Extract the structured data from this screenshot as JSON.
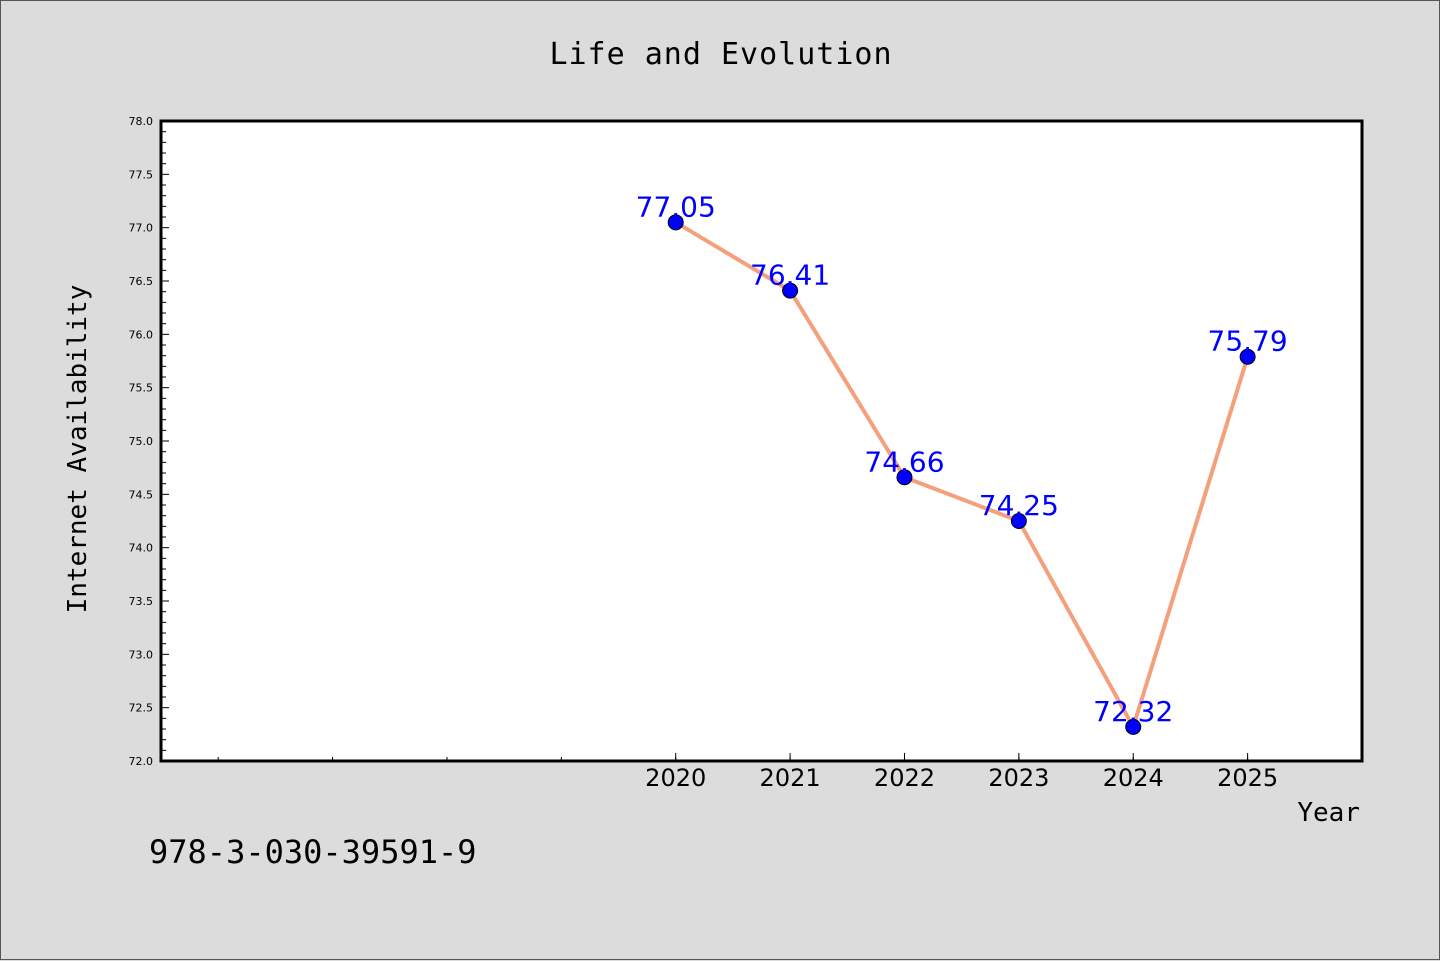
{
  "chart_data": {
    "type": "line",
    "title": "Life and Evolution",
    "xlabel": "Year",
    "ylabel": "Internet Availability",
    "x": [
      2020,
      2021,
      2022,
      2023,
      2024,
      2025
    ],
    "x_tick_labels": [
      "2020",
      "2021",
      "2022",
      "2023",
      "2024",
      "2025"
    ],
    "series": [
      {
        "values": [
          77.05,
          76.41,
          74.66,
          74.25,
          72.32,
          75.79
        ]
      }
    ],
    "data_labels": [
      "77.05",
      "76.41",
      "74.66",
      "74.25",
      "72.32",
      "75.79"
    ],
    "ylim": [
      72.0,
      78.0
    ],
    "y_ticks": [
      "72.0",
      "72.5",
      "73.0",
      "73.5",
      "74.0",
      "74.5",
      "75.0",
      "75.5",
      "76.0",
      "76.5",
      "77.0",
      "77.5",
      "78.0"
    ],
    "xlim": [
      2015.5,
      2026.0
    ],
    "grid": false,
    "legend": "none",
    "colors": {
      "line": "#f4a07c",
      "marker": "#0000ff",
      "label": "#0000ff",
      "background": "#dcdcdc",
      "plot_background": "#ffffff"
    }
  },
  "footer": {
    "isbn": "978-3-030-39591-9"
  }
}
